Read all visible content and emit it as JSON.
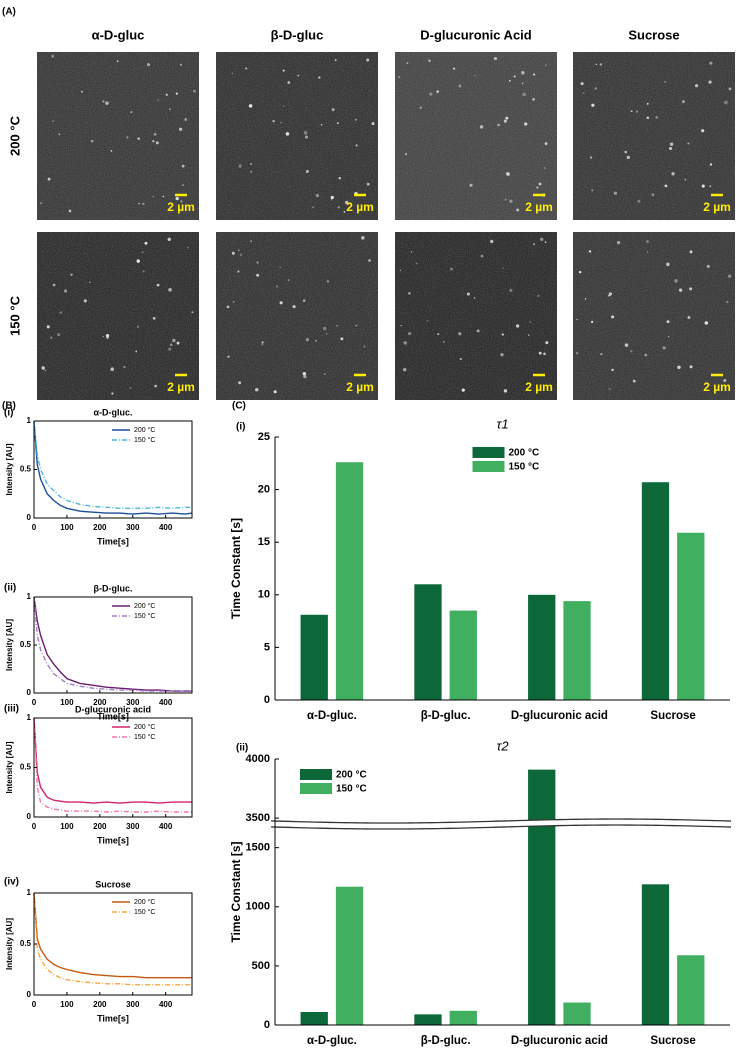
{
  "panel_labels": [
    "(A)",
    "(B)",
    "(C)"
  ],
  "panel_a": {
    "columns": [
      "α-D-gluc",
      "β-D-gluc",
      "D-glucuronic Acid",
      "Sucrose"
    ],
    "rows": [
      "200 °C",
      "150 °C"
    ],
    "scale_bar": "2 µm"
  },
  "chart_data": [
    {
      "type": "line",
      "label": "(i)",
      "title": "α-D-gluc.",
      "x_label": "Time[s]",
      "y_label": "Intensity [AU]",
      "x": [
        0,
        10,
        20,
        40,
        60,
        80,
        100,
        140,
        180,
        220,
        260,
        300,
        340,
        380,
        420,
        460,
        480
      ],
      "series": [
        {
          "name": "200 °C",
          "color": "#1d4f9a",
          "linestyle": "solid",
          "values": [
            1,
            0.55,
            0.4,
            0.25,
            0.18,
            0.13,
            0.1,
            0.07,
            0.06,
            0.05,
            0.05,
            0.04,
            0.05,
            0.04,
            0.05,
            0.04,
            0.05
          ]
        },
        {
          "name": "150 °C",
          "color": "#4fb6dc",
          "linestyle": "dashdot",
          "values": [
            1,
            0.65,
            0.5,
            0.35,
            0.28,
            0.22,
            0.18,
            0.14,
            0.12,
            0.11,
            0.1,
            0.1,
            0.1,
            0.11,
            0.1,
            0.11,
            0.11
          ]
        }
      ],
      "xlim": [
        0,
        480
      ],
      "xticks": [
        0,
        100,
        200,
        300,
        400
      ],
      "ylim": [
        0,
        1
      ],
      "yticks": [
        0,
        0.5,
        1
      ]
    },
    {
      "type": "line",
      "label": "(ii)",
      "title": "β-D-gluc.",
      "x_label": "Time[s]",
      "y_label": "Intensity [AU]",
      "x": [
        0,
        10,
        20,
        40,
        60,
        80,
        100,
        140,
        180,
        220,
        260,
        300,
        340,
        380,
        420,
        460,
        480
      ],
      "series": [
        {
          "name": "200 °C",
          "color": "#6b1b6f",
          "linestyle": "solid",
          "values": [
            1,
            0.75,
            0.6,
            0.4,
            0.3,
            0.22,
            0.15,
            0.1,
            0.08,
            0.06,
            0.05,
            0.04,
            0.03,
            0.03,
            0.02,
            0.02,
            0.02
          ]
        },
        {
          "name": "150 °C",
          "color": "#a47ac6",
          "linestyle": "dashdot",
          "values": [
            1,
            0.6,
            0.45,
            0.3,
            0.2,
            0.15,
            0.1,
            0.07,
            0.05,
            0.04,
            0.03,
            0.03,
            0.02,
            0.02,
            0.02,
            0.02,
            0.02
          ]
        }
      ],
      "xlim": [
        0,
        480
      ],
      "xticks": [
        0,
        100,
        200,
        300,
        400
      ],
      "ylim": [
        0,
        1
      ],
      "yticks": [
        0,
        0.5,
        1
      ]
    },
    {
      "type": "line",
      "label": "(iii)",
      "title": "D-glucuronic acid",
      "x_label": "Time[s]",
      "y_label": "Intensity [AU]",
      "x": [
        0,
        10,
        20,
        40,
        60,
        80,
        100,
        140,
        180,
        220,
        260,
        300,
        340,
        380,
        420,
        460,
        480
      ],
      "series": [
        {
          "name": "200 °C",
          "color": "#d0246b",
          "linestyle": "solid",
          "values": [
            1,
            0.45,
            0.3,
            0.2,
            0.17,
            0.16,
            0.15,
            0.15,
            0.14,
            0.15,
            0.14,
            0.15,
            0.15,
            0.14,
            0.15,
            0.15,
            0.15
          ]
        },
        {
          "name": "150 °C",
          "color": "#f07ab0",
          "linestyle": "dashdot",
          "values": [
            1,
            0.3,
            0.15,
            0.1,
            0.08,
            0.07,
            0.06,
            0.06,
            0.06,
            0.05,
            0.06,
            0.05,
            0.05,
            0.06,
            0.05,
            0.05,
            0.05
          ]
        }
      ],
      "xlim": [
        0,
        480
      ],
      "xticks": [
        0,
        100,
        200,
        300,
        400
      ],
      "ylim": [
        0,
        1
      ],
      "yticks": [
        0,
        0.5,
        1
      ]
    },
    {
      "type": "line",
      "label": "(iv)",
      "title": "Sucrose",
      "x_label": "Time[s]",
      "y_label": "Intensity [AU]",
      "x": [
        0,
        10,
        20,
        40,
        60,
        80,
        100,
        140,
        180,
        220,
        260,
        300,
        340,
        380,
        420,
        460,
        480
      ],
      "series": [
        {
          "name": "200 °C",
          "color": "#c8580f",
          "linestyle": "solid",
          "values": [
            1,
            0.55,
            0.45,
            0.35,
            0.3,
            0.27,
            0.25,
            0.22,
            0.2,
            0.19,
            0.18,
            0.18,
            0.17,
            0.17,
            0.17,
            0.17,
            0.17
          ]
        },
        {
          "name": "150 °C",
          "color": "#f5a742",
          "linestyle": "dashdot",
          "values": [
            1,
            0.45,
            0.35,
            0.25,
            0.2,
            0.17,
            0.15,
            0.13,
            0.12,
            0.11,
            0.11,
            0.1,
            0.1,
            0.1,
            0.1,
            0.1,
            0.1
          ]
        }
      ],
      "xlim": [
        0,
        480
      ],
      "xticks": [
        0,
        100,
        200,
        300,
        400
      ],
      "ylim": [
        0,
        1
      ],
      "yticks": [
        0,
        0.5,
        1
      ]
    },
    {
      "type": "bar",
      "label": "(i)",
      "title": "τ1",
      "y_label": "Time Constant [s]",
      "categories": [
        "α-D-gluc.",
        "β-D-gluc.",
        "D-glucuronic acid",
        "Sucrose"
      ],
      "series": [
        {
          "name": "200 °C",
          "color": "#0c6838",
          "values": [
            8.1,
            11,
            10,
            20.7
          ]
        },
        {
          "name": "150 °C",
          "color": "#40b060",
          "values": [
            22.6,
            8.5,
            9.4,
            15.9
          ]
        }
      ],
      "ylim": [
        0,
        25
      ],
      "yticks": [
        0,
        5,
        10,
        15,
        20,
        25
      ],
      "legend": "top-center"
    },
    {
      "type": "bar",
      "label": "(ii)",
      "title": "τ2",
      "y_label": "Time Constant [s]",
      "categories": [
        "α-D-gluc.",
        "β-D-gluc.",
        "D-glucuronic acid",
        "Sucrose"
      ],
      "series": [
        {
          "name": "200 °C",
          "color": "#0c6838",
          "values": [
            110,
            90,
            3910,
            1190
          ]
        },
        {
          "name": "150 °C",
          "color": "#40b060",
          "values": [
            1170,
            120,
            190,
            590
          ]
        }
      ],
      "ylim": [
        0,
        4000
      ],
      "yticks": [
        0,
        500,
        1000,
        1500,
        3500,
        4000
      ],
      "axis_break": [
        1700,
        3450
      ],
      "legend": "top-left"
    }
  ]
}
